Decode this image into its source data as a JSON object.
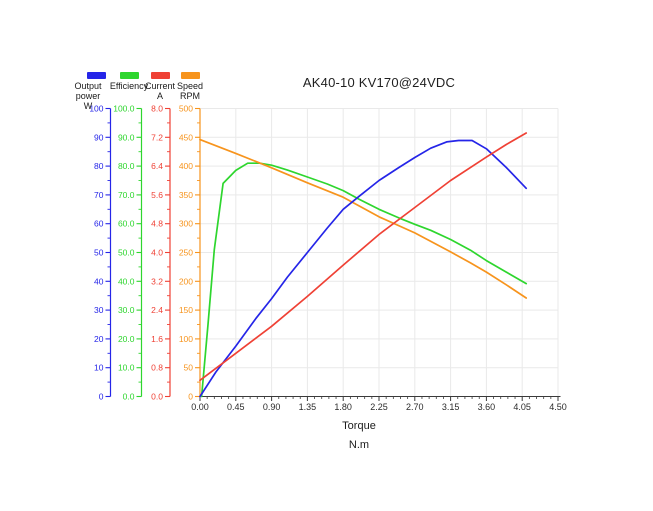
{
  "title": "AK40-10 KV170@24VDC",
  "legend": {
    "items": [
      {
        "id": "output-power",
        "color": "#2525e8",
        "lines": [
          "Output",
          "power",
          "W"
        ]
      },
      {
        "id": "efficiency",
        "color": "#2ed62e",
        "lines": [
          "Efficiency"
        ]
      },
      {
        "id": "current",
        "color": "#ef4135",
        "lines": [
          "Current",
          "A"
        ]
      },
      {
        "id": "speed",
        "color": "#f7941d",
        "lines": [
          "Speed",
          "RPM"
        ]
      }
    ]
  },
  "chart_data": {
    "type": "line",
    "title": "AK40-10 KV170@24VDC",
    "grid": true,
    "legend_position": "top-left",
    "colors": {
      "grid": "#e9e9e9",
      "axis": "#3a3a3a",
      "text": "#2b2b2b"
    },
    "x_axis": {
      "label_lines": [
        "Torque",
        "N.m"
      ],
      "min": 0,
      "max": 4.5,
      "major_step": 0.45,
      "tick_labels": [
        "0.00",
        "0.45",
        "0.90",
        "1.35",
        "1.80",
        "2.25",
        "2.70",
        "3.15",
        "3.60",
        "4.05",
        "4.50"
      ]
    },
    "y_axes": [
      {
        "id": "power",
        "unit": "W",
        "color": "#2525e8",
        "min": 0,
        "max": 100,
        "tick_labels": [
          "0",
          "10",
          "20",
          "30",
          "40",
          "50",
          "60",
          "70",
          "80",
          "90",
          "100"
        ]
      },
      {
        "id": "efficiency",
        "unit": "%",
        "color": "#2ed62e",
        "min": 0,
        "max": 100,
        "tick_labels": [
          "0.0",
          "10.0",
          "20.0",
          "30.0",
          "40.0",
          "50.0",
          "60.0",
          "70.0",
          "80.0",
          "90.0",
          "100.0"
        ]
      },
      {
        "id": "current",
        "unit": "A",
        "color": "#ef4135",
        "min": 0,
        "max": 8,
        "tick_labels": [
          "0.0",
          "0.8",
          "1.6",
          "2.4",
          "3.2",
          "4.0",
          "4.8",
          "5.6",
          "6.4",
          "7.2",
          "8.0"
        ]
      },
      {
        "id": "speed",
        "unit": "RPM",
        "color": "#f7941d",
        "min": 0,
        "max": 500,
        "tick_labels": [
          "0",
          "50",
          "100",
          "150",
          "200",
          "250",
          "300",
          "350",
          "400",
          "450",
          "500"
        ]
      }
    ],
    "series": [
      {
        "id": "power",
        "name": "Output power",
        "axis": "power",
        "color": "#2525e8",
        "points": [
          [
            0,
            0
          ],
          [
            0.2,
            8.5
          ],
          [
            0.45,
            17.5
          ],
          [
            0.7,
            27
          ],
          [
            0.9,
            34
          ],
          [
            1.1,
            41.5
          ],
          [
            1.35,
            50
          ],
          [
            1.6,
            58.5
          ],
          [
            1.8,
            65
          ],
          [
            2.0,
            69.5
          ],
          [
            2.25,
            75
          ],
          [
            2.5,
            79.5
          ],
          [
            2.7,
            83
          ],
          [
            2.9,
            86.2
          ],
          [
            3.1,
            88.4
          ],
          [
            3.25,
            88.9
          ],
          [
            3.42,
            88.9
          ],
          [
            3.6,
            86
          ],
          [
            3.85,
            79.5
          ],
          [
            4.1,
            72.3
          ]
        ]
      },
      {
        "id": "efficiency",
        "name": "Efficiency",
        "axis": "efficiency",
        "color": "#2ed62e",
        "points": [
          [
            0.02,
            0
          ],
          [
            0.1,
            25
          ],
          [
            0.18,
            51
          ],
          [
            0.29,
            74
          ],
          [
            0.45,
            78.5
          ],
          [
            0.6,
            81
          ],
          [
            0.75,
            81
          ],
          [
            0.9,
            80.3
          ],
          [
            1.1,
            78.6
          ],
          [
            1.35,
            76.2
          ],
          [
            1.6,
            73.8
          ],
          [
            1.8,
            71.5
          ],
          [
            2.0,
            68.5
          ],
          [
            2.25,
            65
          ],
          [
            2.5,
            62
          ],
          [
            2.7,
            59.8
          ],
          [
            2.9,
            57.7
          ],
          [
            3.15,
            54.5
          ],
          [
            3.4,
            50.8
          ],
          [
            3.6,
            47.2
          ],
          [
            3.85,
            43.2
          ],
          [
            4.1,
            39.2
          ]
        ]
      },
      {
        "id": "current",
        "name": "Current",
        "axis": "current",
        "color": "#ef4135",
        "points": [
          [
            0,
            0.45
          ],
          [
            0.45,
            1.2
          ],
          [
            0.9,
            1.95
          ],
          [
            1.35,
            2.78
          ],
          [
            1.8,
            3.65
          ],
          [
            2.25,
            4.5
          ],
          [
            2.7,
            5.25
          ],
          [
            3.15,
            6.0
          ],
          [
            3.6,
            6.65
          ],
          [
            3.85,
            7.0
          ],
          [
            4.1,
            7.32
          ]
        ]
      },
      {
        "id": "speed",
        "name": "Speed",
        "axis": "speed",
        "color": "#f7941d",
        "points": [
          [
            0,
            446
          ],
          [
            0.45,
            422
          ],
          [
            0.9,
            397
          ],
          [
            1.35,
            371
          ],
          [
            1.8,
            346
          ],
          [
            2.25,
            312
          ],
          [
            2.7,
            284
          ],
          [
            3.15,
            251
          ],
          [
            3.4,
            232
          ],
          [
            3.6,
            216
          ],
          [
            3.85,
            194
          ],
          [
            4.1,
            171
          ]
        ]
      }
    ]
  }
}
